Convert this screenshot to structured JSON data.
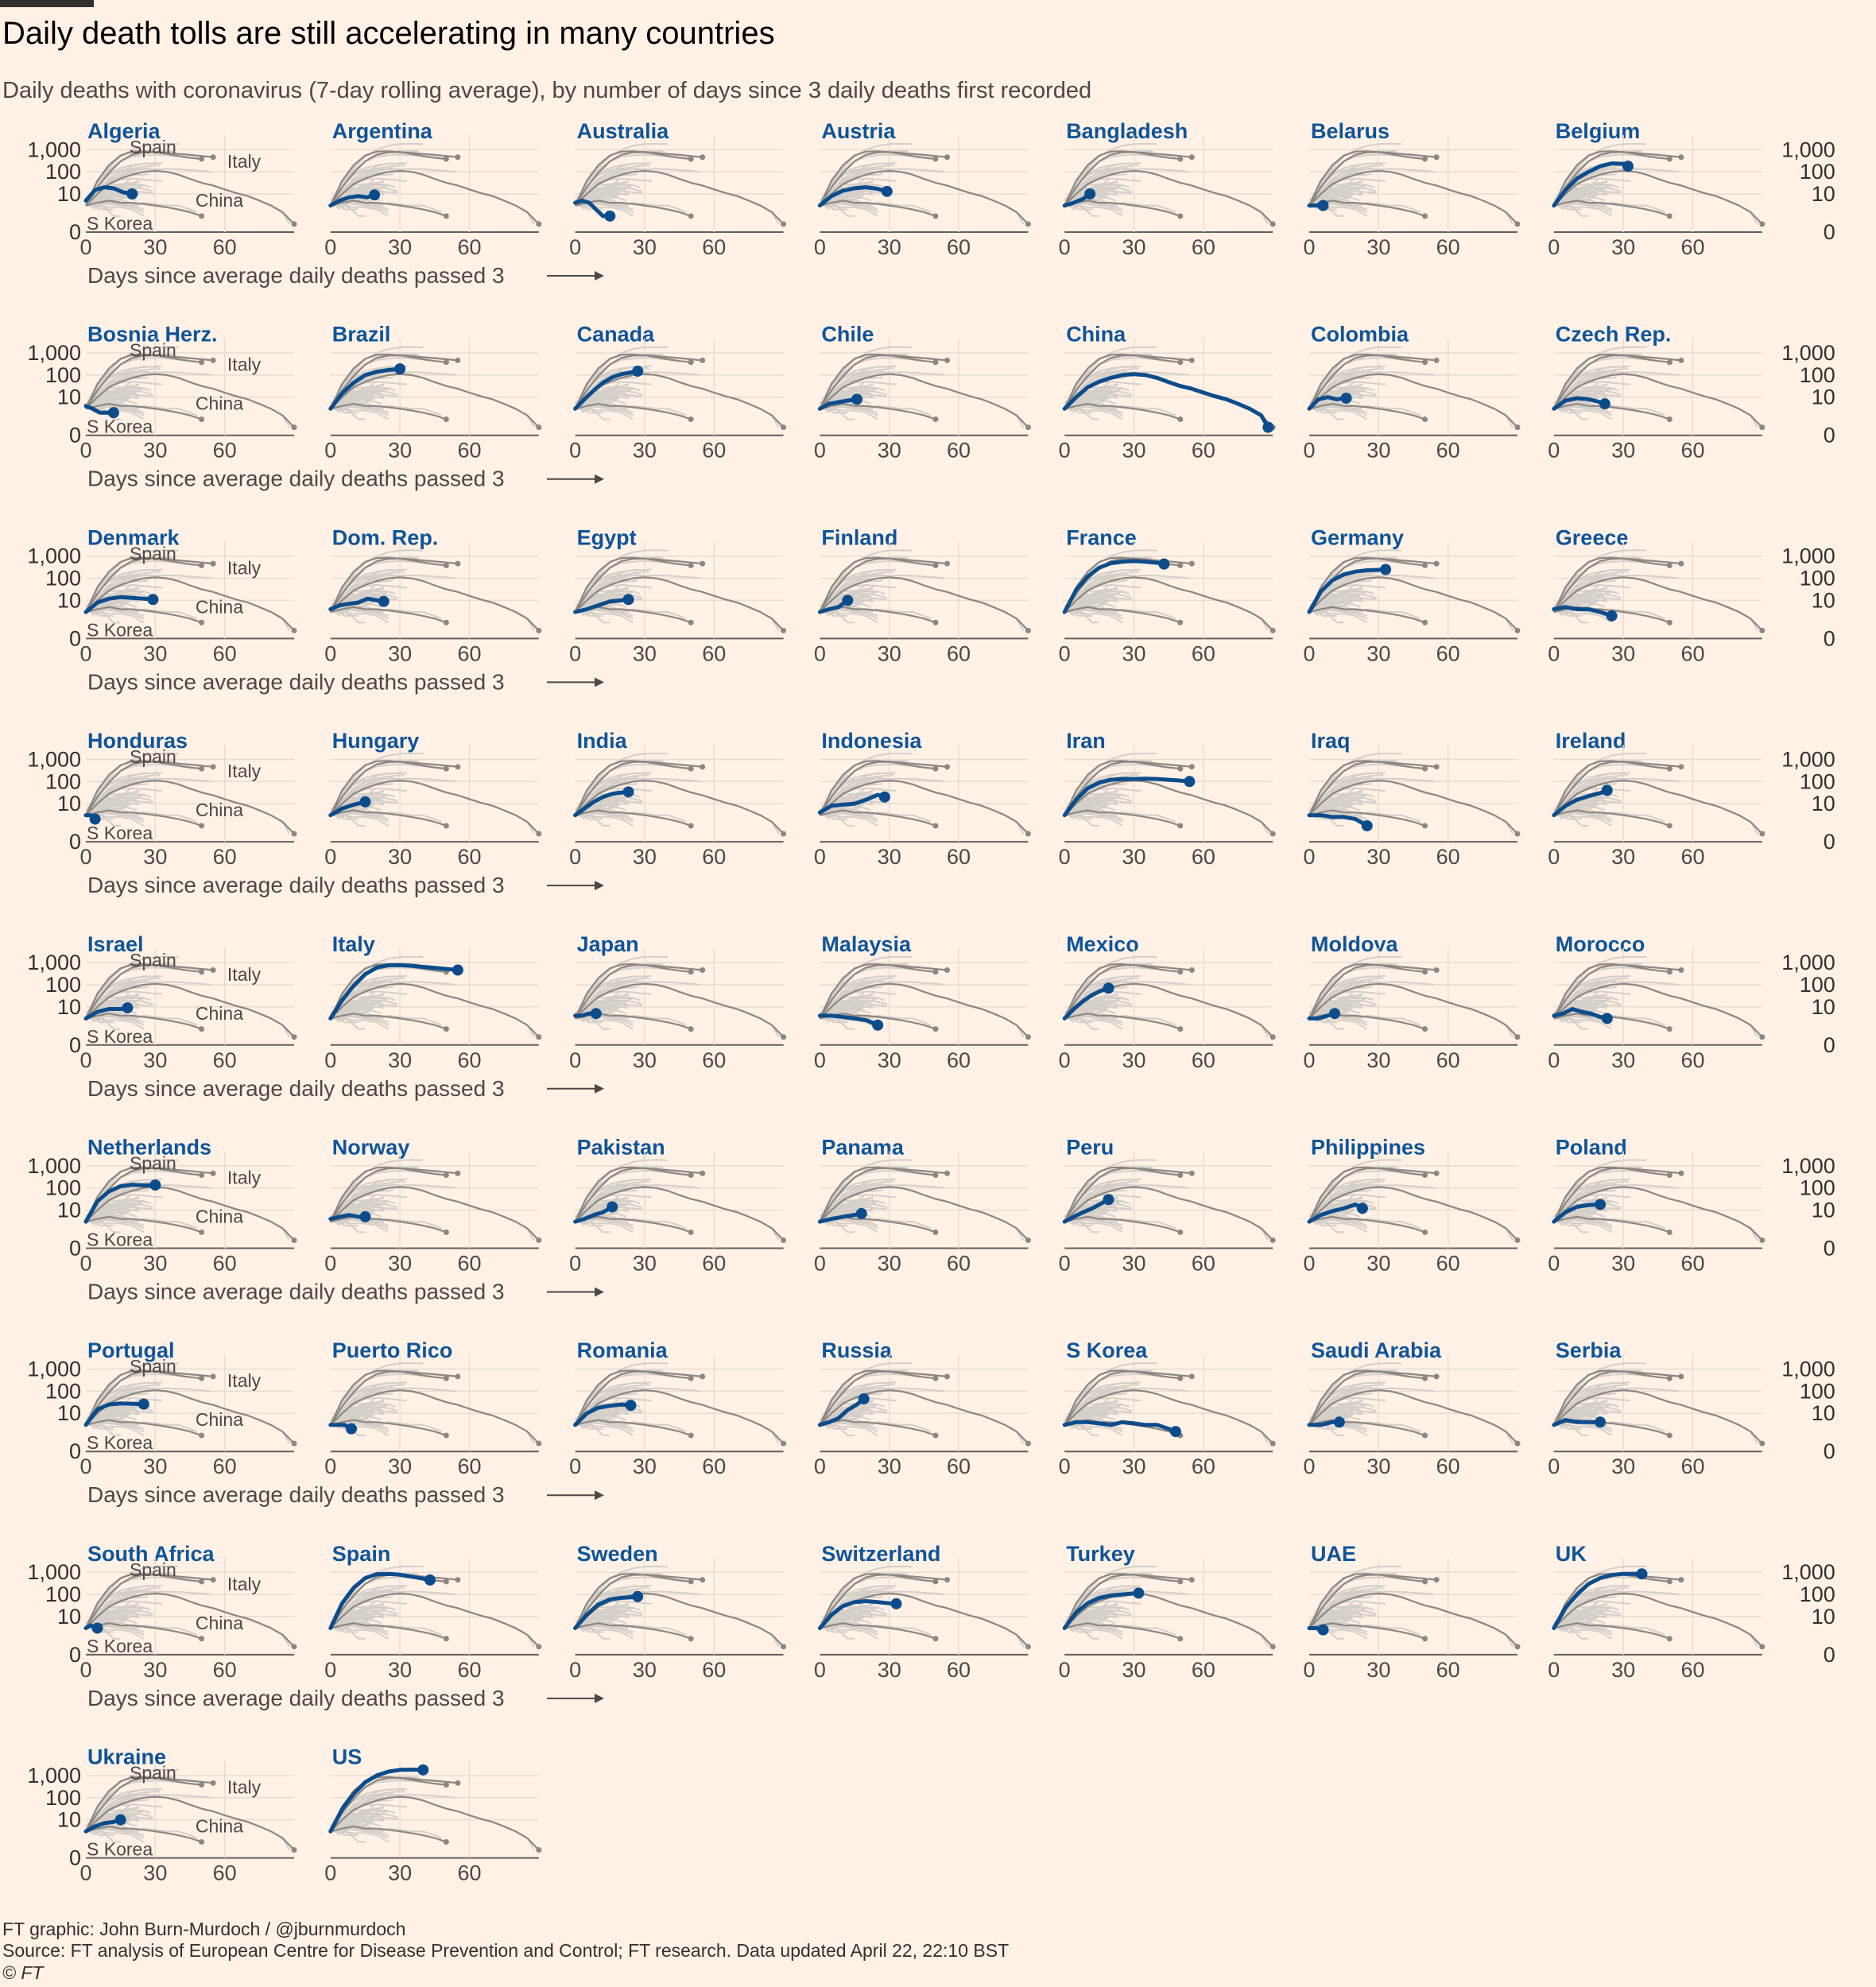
{
  "title": "Daily death tolls are still accelerating in many countries",
  "subtitle": "Daily deaths with coronavirus (7-day rolling average), by number of days since 3 daily deaths first recorded",
  "footer": {
    "credit": "FT graphic: John Burn-Murdoch / @jburnmurdoch",
    "source": "Source: FT analysis of European Centre for Disease Prevention and Control; FT research. Data updated April 22, 22:10 BST",
    "copyright": "© FT"
  },
  "colors": {
    "background": "#fff1e5",
    "highlight": "#0d4c8b",
    "reference_line": "#8d8782",
    "background_line": "#d4cfc9",
    "gridline": "#e6ddd3"
  },
  "x_axis_caption": "Days since average daily deaths passed 3",
  "reference_labels": {
    "spain": "Spain",
    "italy": "Italy",
    "china": "China",
    "skorea": "S Korea"
  },
  "chart_data": {
    "type": "line",
    "layout": "small-multiples",
    "y_scale": "log",
    "y_ticks": [
      0,
      10,
      100,
      1000
    ],
    "y_tick_labels": [
      "0",
      "10",
      "100",
      "1,000"
    ],
    "x_ticks": [
      0,
      30,
      60
    ],
    "x_tick_labels": [
      "0",
      "30",
      "60"
    ],
    "xlim": [
      0,
      90
    ],
    "reference_series": [
      {
        "name": "Italy",
        "x": [
          0,
          5,
          10,
          15,
          20,
          25,
          30,
          35,
          40,
          45,
          50,
          55
        ],
        "y": [
          3,
          20,
          90,
          300,
          600,
          760,
          780,
          720,
          640,
          580,
          520,
          460
        ]
      },
      {
        "name": "Spain",
        "x": [
          0,
          5,
          10,
          15,
          20,
          25,
          30,
          35,
          40,
          45,
          50
        ],
        "y": [
          3,
          40,
          200,
          550,
          820,
          850,
          780,
          640,
          520,
          430,
          380
        ]
      },
      {
        "name": "China",
        "x": [
          0,
          5,
          10,
          15,
          20,
          25,
          30,
          35,
          40,
          45,
          50,
          55,
          60,
          65,
          70,
          75,
          80,
          85,
          90
        ],
        "y": [
          3,
          10,
          28,
          50,
          75,
          100,
          110,
          100,
          75,
          48,
          32,
          24,
          16,
          11,
          8,
          5,
          3,
          1.5,
          0.5
        ]
      },
      {
        "name": "S Korea",
        "x": [
          0,
          5,
          10,
          15,
          20,
          25,
          30,
          35,
          40,
          45,
          50
        ],
        "y": [
          3,
          4,
          5,
          4,
          4,
          3.5,
          3,
          2.5,
          2,
          1.5,
          1
        ]
      }
    ],
    "countries": [
      {
        "name": "Algeria",
        "x": [
          0,
          4,
          8,
          12,
          16,
          20
        ],
        "y": [
          5,
          15,
          20,
          18,
          12,
          10
        ]
      },
      {
        "name": "Argentina",
        "x": [
          0,
          4,
          8,
          12,
          16,
          19
        ],
        "y": [
          3,
          5,
          7,
          8,
          7,
          9
        ]
      },
      {
        "name": "Australia",
        "x": [
          0,
          3,
          6,
          9,
          12,
          15
        ],
        "y": [
          4,
          5,
          4,
          2,
          1,
          1
        ]
      },
      {
        "name": "Austria",
        "x": [
          0,
          5,
          10,
          15,
          20,
          25,
          29
        ],
        "y": [
          3,
          8,
          14,
          18,
          20,
          17,
          13
        ]
      },
      {
        "name": "Bangladesh",
        "x": [
          0,
          4,
          8,
          11
        ],
        "y": [
          3,
          4,
          6,
          10
        ]
      },
      {
        "name": "Belarus",
        "x": [
          0,
          3,
          6
        ],
        "y": [
          3,
          3,
          3
        ]
      },
      {
        "name": "Belgium",
        "x": [
          0,
          5,
          10,
          15,
          20,
          25,
          30,
          32
        ],
        "y": [
          3,
          15,
          50,
          100,
          180,
          240,
          230,
          180
        ]
      },
      {
        "name": "Bosnia Herz.",
        "x": [
          0,
          3,
          6,
          9,
          12
        ],
        "y": [
          4,
          3,
          2,
          2,
          2
        ]
      },
      {
        "name": "Brazil",
        "x": [
          0,
          5,
          10,
          15,
          20,
          25,
          30
        ],
        "y": [
          3,
          15,
          45,
          100,
          140,
          170,
          190
        ]
      },
      {
        "name": "Canada",
        "x": [
          0,
          4,
          8,
          12,
          16,
          20,
          24,
          27
        ],
        "y": [
          3,
          8,
          20,
          45,
          80,
          110,
          130,
          150
        ]
      },
      {
        "name": "Chile",
        "x": [
          0,
          4,
          8,
          12,
          16
        ],
        "y": [
          3,
          5,
          6,
          7,
          8
        ]
      },
      {
        "name": "China",
        "x": [
          0,
          5,
          10,
          15,
          20,
          25,
          30,
          35,
          40,
          45,
          50,
          55,
          60,
          65,
          70,
          75,
          80,
          85,
          88
        ],
        "y": [
          3,
          10,
          28,
          50,
          75,
          100,
          110,
          100,
          75,
          48,
          32,
          24,
          16,
          11,
          8,
          5,
          3,
          1.5,
          0.5
        ]
      },
      {
        "name": "Colombia",
        "x": [
          0,
          4,
          8,
          12,
          16
        ],
        "y": [
          3,
          8,
          10,
          8,
          9
        ]
      },
      {
        "name": "Czech Rep.",
        "x": [
          0,
          5,
          10,
          15,
          20,
          22
        ],
        "y": [
          3,
          7,
          9,
          8,
          6,
          5
        ]
      },
      {
        "name": "Denmark",
        "x": [
          0,
          5,
          10,
          15,
          20,
          25,
          29
        ],
        "y": [
          3,
          8,
          12,
          14,
          13,
          12,
          11
        ]
      },
      {
        "name": "Dom. Rep.",
        "x": [
          0,
          4,
          8,
          12,
          16,
          20,
          23
        ],
        "y": [
          4,
          6,
          7,
          8,
          12,
          10,
          9
        ]
      },
      {
        "name": "Egypt",
        "x": [
          0,
          5,
          10,
          15,
          20,
          23
        ],
        "y": [
          3,
          4,
          6,
          9,
          10,
          11
        ]
      },
      {
        "name": "Finland",
        "x": [
          0,
          4,
          8,
          12
        ],
        "y": [
          3,
          4,
          5,
          10
        ]
      },
      {
        "name": "France",
        "x": [
          0,
          5,
          10,
          15,
          20,
          25,
          30,
          35,
          40,
          43
        ],
        "y": [
          3,
          30,
          120,
          300,
          480,
          560,
          600,
          560,
          500,
          440
        ]
      },
      {
        "name": "Germany",
        "x": [
          0,
          5,
          10,
          15,
          20,
          25,
          30,
          33
        ],
        "y": [
          3,
          25,
          80,
          150,
          200,
          230,
          240,
          250
        ]
      },
      {
        "name": "Greece",
        "x": [
          0,
          5,
          10,
          15,
          20,
          25
        ],
        "y": [
          4,
          5,
          4,
          4,
          3,
          2
        ]
      },
      {
        "name": "Honduras",
        "x": [
          0,
          2,
          4
        ],
        "y": [
          3,
          3,
          2
        ]
      },
      {
        "name": "Hungary",
        "x": [
          0,
          5,
          10,
          15
        ],
        "y": [
          3,
          6,
          9,
          12
        ]
      },
      {
        "name": "India",
        "x": [
          0,
          4,
          8,
          12,
          16,
          20,
          23
        ],
        "y": [
          3,
          6,
          12,
          20,
          28,
          32,
          34
        ]
      },
      {
        "name": "Indonesia",
        "x": [
          0,
          5,
          10,
          15,
          20,
          25,
          28
        ],
        "y": [
          4,
          8,
          9,
          10,
          15,
          25,
          20
        ]
      },
      {
        "name": "Iran",
        "x": [
          0,
          5,
          10,
          15,
          20,
          25,
          30,
          35,
          40,
          45,
          50,
          54
        ],
        "y": [
          3,
          15,
          50,
          90,
          120,
          130,
          130,
          135,
          130,
          120,
          110,
          100
        ]
      },
      {
        "name": "Iraq",
        "x": [
          0,
          5,
          10,
          15,
          20,
          25
        ],
        "y": [
          3,
          3,
          2.5,
          2.5,
          2,
          1
        ]
      },
      {
        "name": "Ireland",
        "x": [
          0,
          5,
          10,
          15,
          20,
          23
        ],
        "y": [
          3,
          8,
          15,
          22,
          30,
          40
        ]
      },
      {
        "name": "Israel",
        "x": [
          0,
          5,
          10,
          15,
          18
        ],
        "y": [
          3,
          6,
          8,
          8,
          9
        ]
      },
      {
        "name": "Italy",
        "x": [
          0,
          5,
          10,
          15,
          20,
          25,
          30,
          35,
          40,
          45,
          50,
          55
        ],
        "y": [
          3,
          20,
          90,
          300,
          600,
          760,
          780,
          720,
          640,
          580,
          520,
          460
        ]
      },
      {
        "name": "Japan",
        "x": [
          0,
          3,
          6,
          9
        ],
        "y": [
          4,
          4,
          5,
          5
        ]
      },
      {
        "name": "Malaysia",
        "x": [
          0,
          5,
          10,
          15,
          20,
          25
        ],
        "y": [
          4,
          4,
          3.5,
          3,
          2.5,
          1.5
        ]
      },
      {
        "name": "Mexico",
        "x": [
          0,
          4,
          8,
          12,
          16,
          19
        ],
        "y": [
          3,
          8,
          18,
          35,
          55,
          70
        ]
      },
      {
        "name": "Moldova",
        "x": [
          0,
          4,
          8,
          11
        ],
        "y": [
          3,
          3,
          4,
          5
        ]
      },
      {
        "name": "Morocco",
        "x": [
          0,
          4,
          8,
          12,
          16,
          20,
          23
        ],
        "y": [
          4,
          5,
          8,
          6,
          5,
          3.5,
          3
        ]
      },
      {
        "name": "Netherlands",
        "x": [
          0,
          5,
          10,
          15,
          20,
          25,
          30
        ],
        "y": [
          3,
          25,
          70,
          120,
          140,
          130,
          135
        ]
      },
      {
        "name": "Norway",
        "x": [
          0,
          4,
          8,
          12,
          15
        ],
        "y": [
          4,
          5,
          6,
          5,
          5
        ]
      },
      {
        "name": "Pakistan",
        "x": [
          0,
          4,
          8,
          12,
          16
        ],
        "y": [
          3,
          4,
          6,
          8,
          14
        ]
      },
      {
        "name": "Panama",
        "x": [
          0,
          5,
          10,
          15,
          18
        ],
        "y": [
          3,
          4,
          5,
          6,
          7
        ]
      },
      {
        "name": "Peru",
        "x": [
          0,
          4,
          8,
          12,
          16,
          19
        ],
        "y": [
          3,
          5,
          8,
          12,
          20,
          30
        ]
      },
      {
        "name": "Philippines",
        "x": [
          0,
          5,
          10,
          15,
          20,
          23
        ],
        "y": [
          3,
          6,
          9,
          12,
          18,
          12
        ]
      },
      {
        "name": "Poland",
        "x": [
          0,
          5,
          10,
          15,
          20
        ],
        "y": [
          3,
          8,
          14,
          17,
          18
        ]
      },
      {
        "name": "Portugal",
        "x": [
          0,
          5,
          10,
          15,
          20,
          25
        ],
        "y": [
          3,
          15,
          25,
          28,
          27,
          26
        ]
      },
      {
        "name": "Puerto Rico",
        "x": [
          0,
          3,
          6,
          9
        ],
        "y": [
          3,
          3,
          3,
          2
        ]
      },
      {
        "name": "Romania",
        "x": [
          0,
          5,
          10,
          15,
          20,
          24
        ],
        "y": [
          3,
          10,
          18,
          22,
          25,
          23
        ]
      },
      {
        "name": "Russia",
        "x": [
          0,
          4,
          8,
          12,
          16,
          19
        ],
        "y": [
          3,
          4,
          6,
          14,
          25,
          45
        ]
      },
      {
        "name": "S Korea",
        "x": [
          0,
          5,
          10,
          15,
          20,
          25,
          30,
          35,
          40,
          45,
          48
        ],
        "y": [
          3,
          4,
          4,
          3.5,
          3,
          4,
          3.5,
          3,
          3,
          2,
          1.5
        ]
      },
      {
        "name": "Saudi Arabia",
        "x": [
          0,
          5,
          10,
          13
        ],
        "y": [
          3,
          3,
          4,
          4
        ]
      },
      {
        "name": "Serbia",
        "x": [
          0,
          5,
          10,
          15,
          20
        ],
        "y": [
          3,
          5,
          4,
          4,
          4
        ]
      },
      {
        "name": "South Africa",
        "x": [
          0,
          2,
          5
        ],
        "y": [
          3,
          4,
          3
        ]
      },
      {
        "name": "Spain",
        "x": [
          0,
          5,
          10,
          15,
          20,
          25,
          30,
          35,
          40,
          43
        ],
        "y": [
          3,
          40,
          200,
          550,
          820,
          850,
          780,
          640,
          520,
          450
        ]
      },
      {
        "name": "Sweden",
        "x": [
          0,
          5,
          10,
          15,
          20,
          25,
          27
        ],
        "y": [
          3,
          12,
          35,
          60,
          70,
          75,
          80
        ]
      },
      {
        "name": "Switzerland",
        "x": [
          0,
          5,
          10,
          15,
          20,
          25,
          30,
          33
        ],
        "y": [
          3,
          12,
          30,
          45,
          50,
          45,
          40,
          38
        ]
      },
      {
        "name": "Turkey",
        "x": [
          0,
          5,
          10,
          15,
          20,
          25,
          30,
          32
        ],
        "y": [
          3,
          15,
          40,
          70,
          90,
          100,
          110,
          115
        ]
      },
      {
        "name": "UAE",
        "x": [
          0,
          3,
          6
        ],
        "y": [
          3,
          3,
          2.5
        ]
      },
      {
        "name": "UK",
        "x": [
          0,
          5,
          10,
          15,
          20,
          25,
          30,
          35,
          38
        ],
        "y": [
          3,
          25,
          100,
          300,
          550,
          750,
          850,
          860,
          850
        ]
      },
      {
        "name": "Ukraine",
        "x": [
          0,
          4,
          8,
          12,
          15
        ],
        "y": [
          3,
          5,
          7,
          8,
          10
        ]
      },
      {
        "name": "US",
        "x": [
          0,
          5,
          10,
          15,
          20,
          25,
          30,
          35,
          40
        ],
        "y": [
          3,
          30,
          150,
          500,
          1000,
          1500,
          1800,
          1850,
          1800
        ]
      }
    ]
  }
}
